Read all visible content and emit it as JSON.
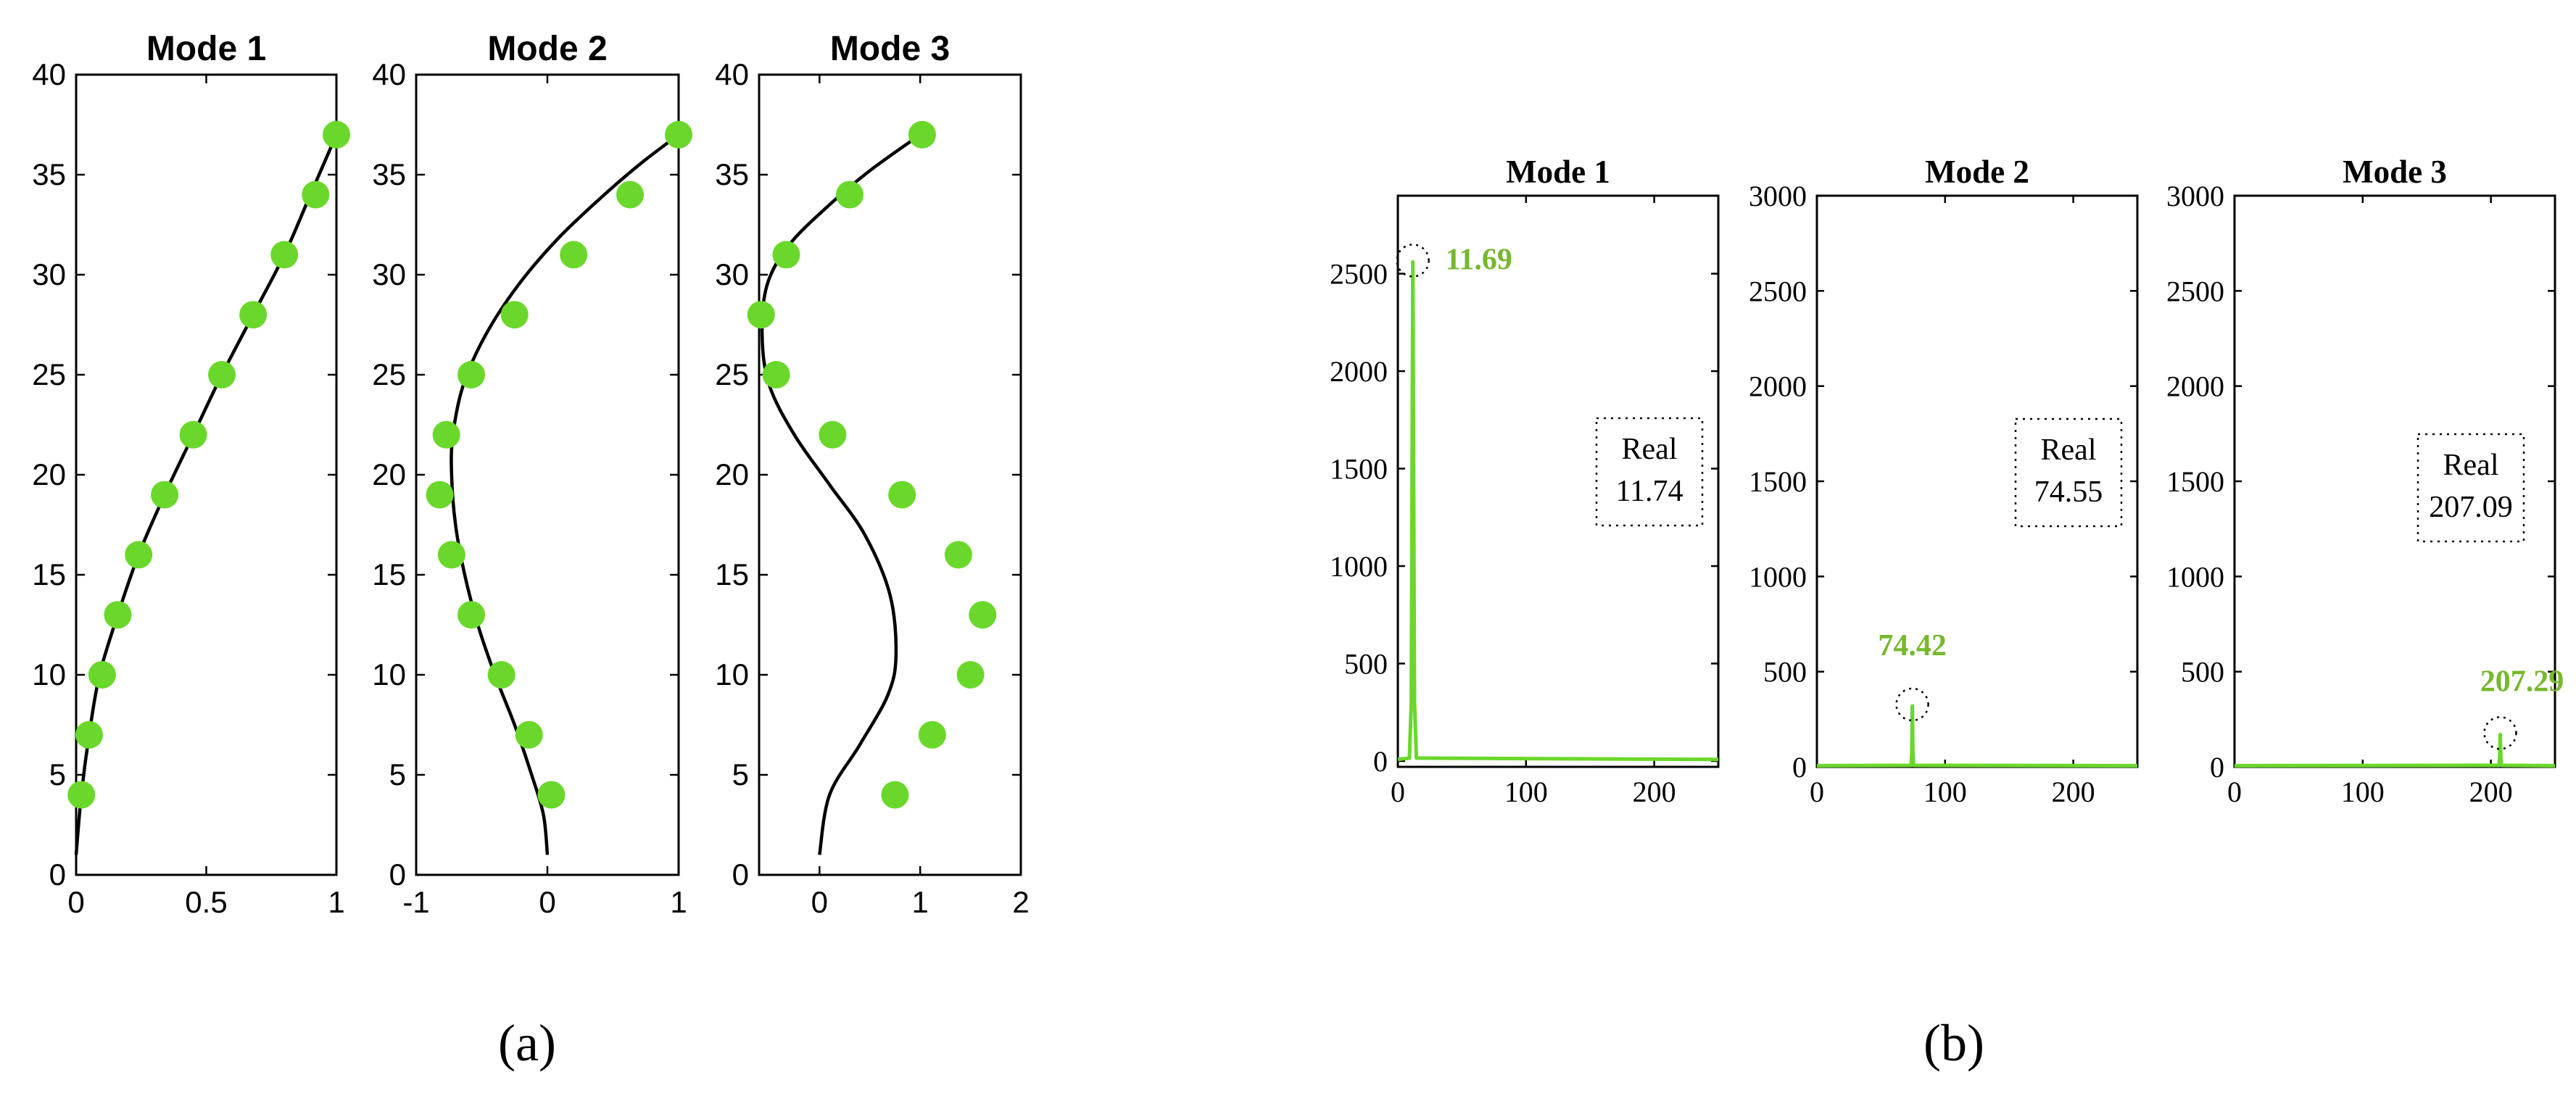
{
  "figure": {
    "panel_labels": [
      "(a)",
      "(b)"
    ]
  },
  "colors": {
    "green": "#6ad82a",
    "dark_green": "#76b82e",
    "black": "#000000"
  },
  "chart_data": [
    {
      "type": "line",
      "panel": "a",
      "title": "Mode 1",
      "xlim": [
        0,
        1
      ],
      "ylim": [
        0,
        40
      ],
      "xticks": [
        0,
        0.5,
        1
      ],
      "xtick_labels": [
        "0",
        "0.5",
        "1"
      ],
      "yticks": [
        0,
        5,
        10,
        15,
        20,
        25,
        30,
        35,
        40
      ],
      "grid": false,
      "series": [
        {
          "kind": "line",
          "x": [
            0.0,
            0.02,
            0.05,
            0.09,
            0.16,
            0.24,
            0.34,
            0.45,
            0.56,
            0.68,
            0.8,
            0.9,
            1.0
          ],
          "y": [
            1,
            4,
            7,
            10,
            13,
            16,
            19,
            22,
            25,
            28,
            31,
            34,
            37
          ]
        },
        {
          "kind": "scatter",
          "x": [
            0.02,
            0.05,
            0.1,
            0.16,
            0.24,
            0.34,
            0.45,
            0.56,
            0.68,
            0.8,
            0.92,
            1.0
          ],
          "y": [
            4,
            7,
            10,
            13,
            16,
            19,
            22,
            25,
            28,
            31,
            34,
            37
          ]
        }
      ]
    },
    {
      "type": "line",
      "panel": "a",
      "title": "Mode 2",
      "xlim": [
        -1,
        1
      ],
      "ylim": [
        0,
        40
      ],
      "xticks": [
        -1,
        0,
        1
      ],
      "xtick_labels": [
        "-1",
        "0",
        "1"
      ],
      "yticks": [
        0,
        5,
        10,
        15,
        20,
        25,
        30,
        35,
        40
      ],
      "grid": false,
      "series": [
        {
          "kind": "line",
          "x": [
            0.0,
            -0.03,
            -0.12,
            -0.25,
            -0.4,
            -0.53,
            -0.63,
            -0.7,
            -0.73,
            -0.72,
            -0.64,
            -0.47,
            -0.22,
            0.08,
            0.4,
            0.7,
            1.0
          ],
          "y": [
            1,
            3,
            5,
            7.5,
            10,
            12.5,
            15,
            17.5,
            20,
            22,
            24.5,
            27,
            29.5,
            31.8,
            33.8,
            35.5,
            37
          ]
        },
        {
          "kind": "scatter",
          "x": [
            0.03,
            -0.14,
            -0.35,
            -0.58,
            -0.73,
            -0.82,
            -0.77,
            -0.58,
            -0.25,
            0.2,
            0.63,
            1.0
          ],
          "y": [
            4,
            7,
            10,
            13,
            16,
            19,
            22,
            25,
            28,
            31,
            34,
            37
          ]
        }
      ]
    },
    {
      "type": "line",
      "panel": "a",
      "title": "Mode 3",
      "xlim": [
        -0.6,
        2
      ],
      "ylim": [
        0,
        40
      ],
      "xticks": [
        0,
        1,
        2
      ],
      "xtick_labels": [
        "0",
        "1",
        "2"
      ],
      "yticks": [
        0,
        5,
        10,
        15,
        20,
        25,
        30,
        35,
        40
      ],
      "grid": false,
      "series": [
        {
          "kind": "line",
          "x": [
            0.0,
            0.1,
            0.4,
            0.68,
            0.76,
            0.7,
            0.45,
            0.1,
            -0.25,
            -0.5,
            -0.57,
            -0.52,
            -0.3,
            0.1,
            0.5,
            1.0
          ],
          "y": [
            1,
            4,
            6.5,
            9,
            11,
            14,
            17,
            19.5,
            22,
            24.5,
            27,
            29.5,
            31.5,
            33.5,
            35.2,
            37
          ]
        },
        {
          "kind": "scatter",
          "x": [
            0.75,
            1.12,
            1.5,
            1.62,
            1.38,
            0.82,
            0.13,
            -0.43,
            -0.58,
            -0.33,
            0.3,
            1.02
          ],
          "y": [
            4,
            7,
            10,
            13,
            16,
            19,
            22,
            25,
            28,
            31,
            34,
            37
          ]
        }
      ]
    },
    {
      "type": "line",
      "panel": "b",
      "title": "Mode 1",
      "xlim": [
        0,
        250
      ],
      "ylim": [
        -30,
        2900
      ],
      "xticks": [
        0,
        100,
        200
      ],
      "yticks": [
        0,
        500,
        1000,
        1500,
        2000,
        2500
      ],
      "grid": false,
      "series": [
        {
          "kind": "line",
          "x": [
            0,
            9,
            10.5,
            11.69,
            13,
            14.5,
            250
          ],
          "y": [
            8,
            15,
            300,
            2560,
            300,
            15,
            8
          ]
        }
      ],
      "annotations": [
        {
          "peak_x": 11.69,
          "peak_y": 2560,
          "label": "11.69"
        },
        {
          "box_line1": "Real",
          "box_line2": "11.74"
        }
      ]
    },
    {
      "type": "line",
      "panel": "b",
      "title": "Mode 2",
      "xlim": [
        0,
        250
      ],
      "ylim": [
        0,
        3000
      ],
      "xticks": [
        0,
        100,
        200
      ],
      "yticks": [
        0,
        500,
        1000,
        1500,
        2000,
        2500,
        3000
      ],
      "grid": false,
      "series": [
        {
          "kind": "line",
          "x": [
            0,
            73.5,
            74.0,
            74.42,
            74.9,
            75.4,
            250
          ],
          "y": [
            6,
            8,
            80,
            320,
            80,
            8,
            6
          ]
        }
      ],
      "annotations": [
        {
          "peak_x": 74.42,
          "peak_y": 320,
          "label": "74.42"
        },
        {
          "box_line1": "Real",
          "box_line2": "74.55"
        }
      ]
    },
    {
      "type": "line",
      "panel": "b",
      "title": "Mode 3",
      "xlim": [
        0,
        250
      ],
      "ylim": [
        0,
        3000
      ],
      "xticks": [
        0,
        100,
        200
      ],
      "yticks": [
        0,
        500,
        1000,
        1500,
        2000,
        2500,
        3000
      ],
      "grid": false,
      "series": [
        {
          "kind": "line",
          "x": [
            0,
            206.3,
            206.8,
            207.29,
            207.8,
            208.3,
            250
          ],
          "y": [
            6,
            8,
            50,
            170,
            50,
            8,
            6
          ]
        }
      ],
      "annotations": [
        {
          "peak_x": 207.29,
          "peak_y": 170,
          "label": "207.29"
        },
        {
          "box_line1": "Real",
          "box_line2": "207.09"
        }
      ]
    }
  ]
}
